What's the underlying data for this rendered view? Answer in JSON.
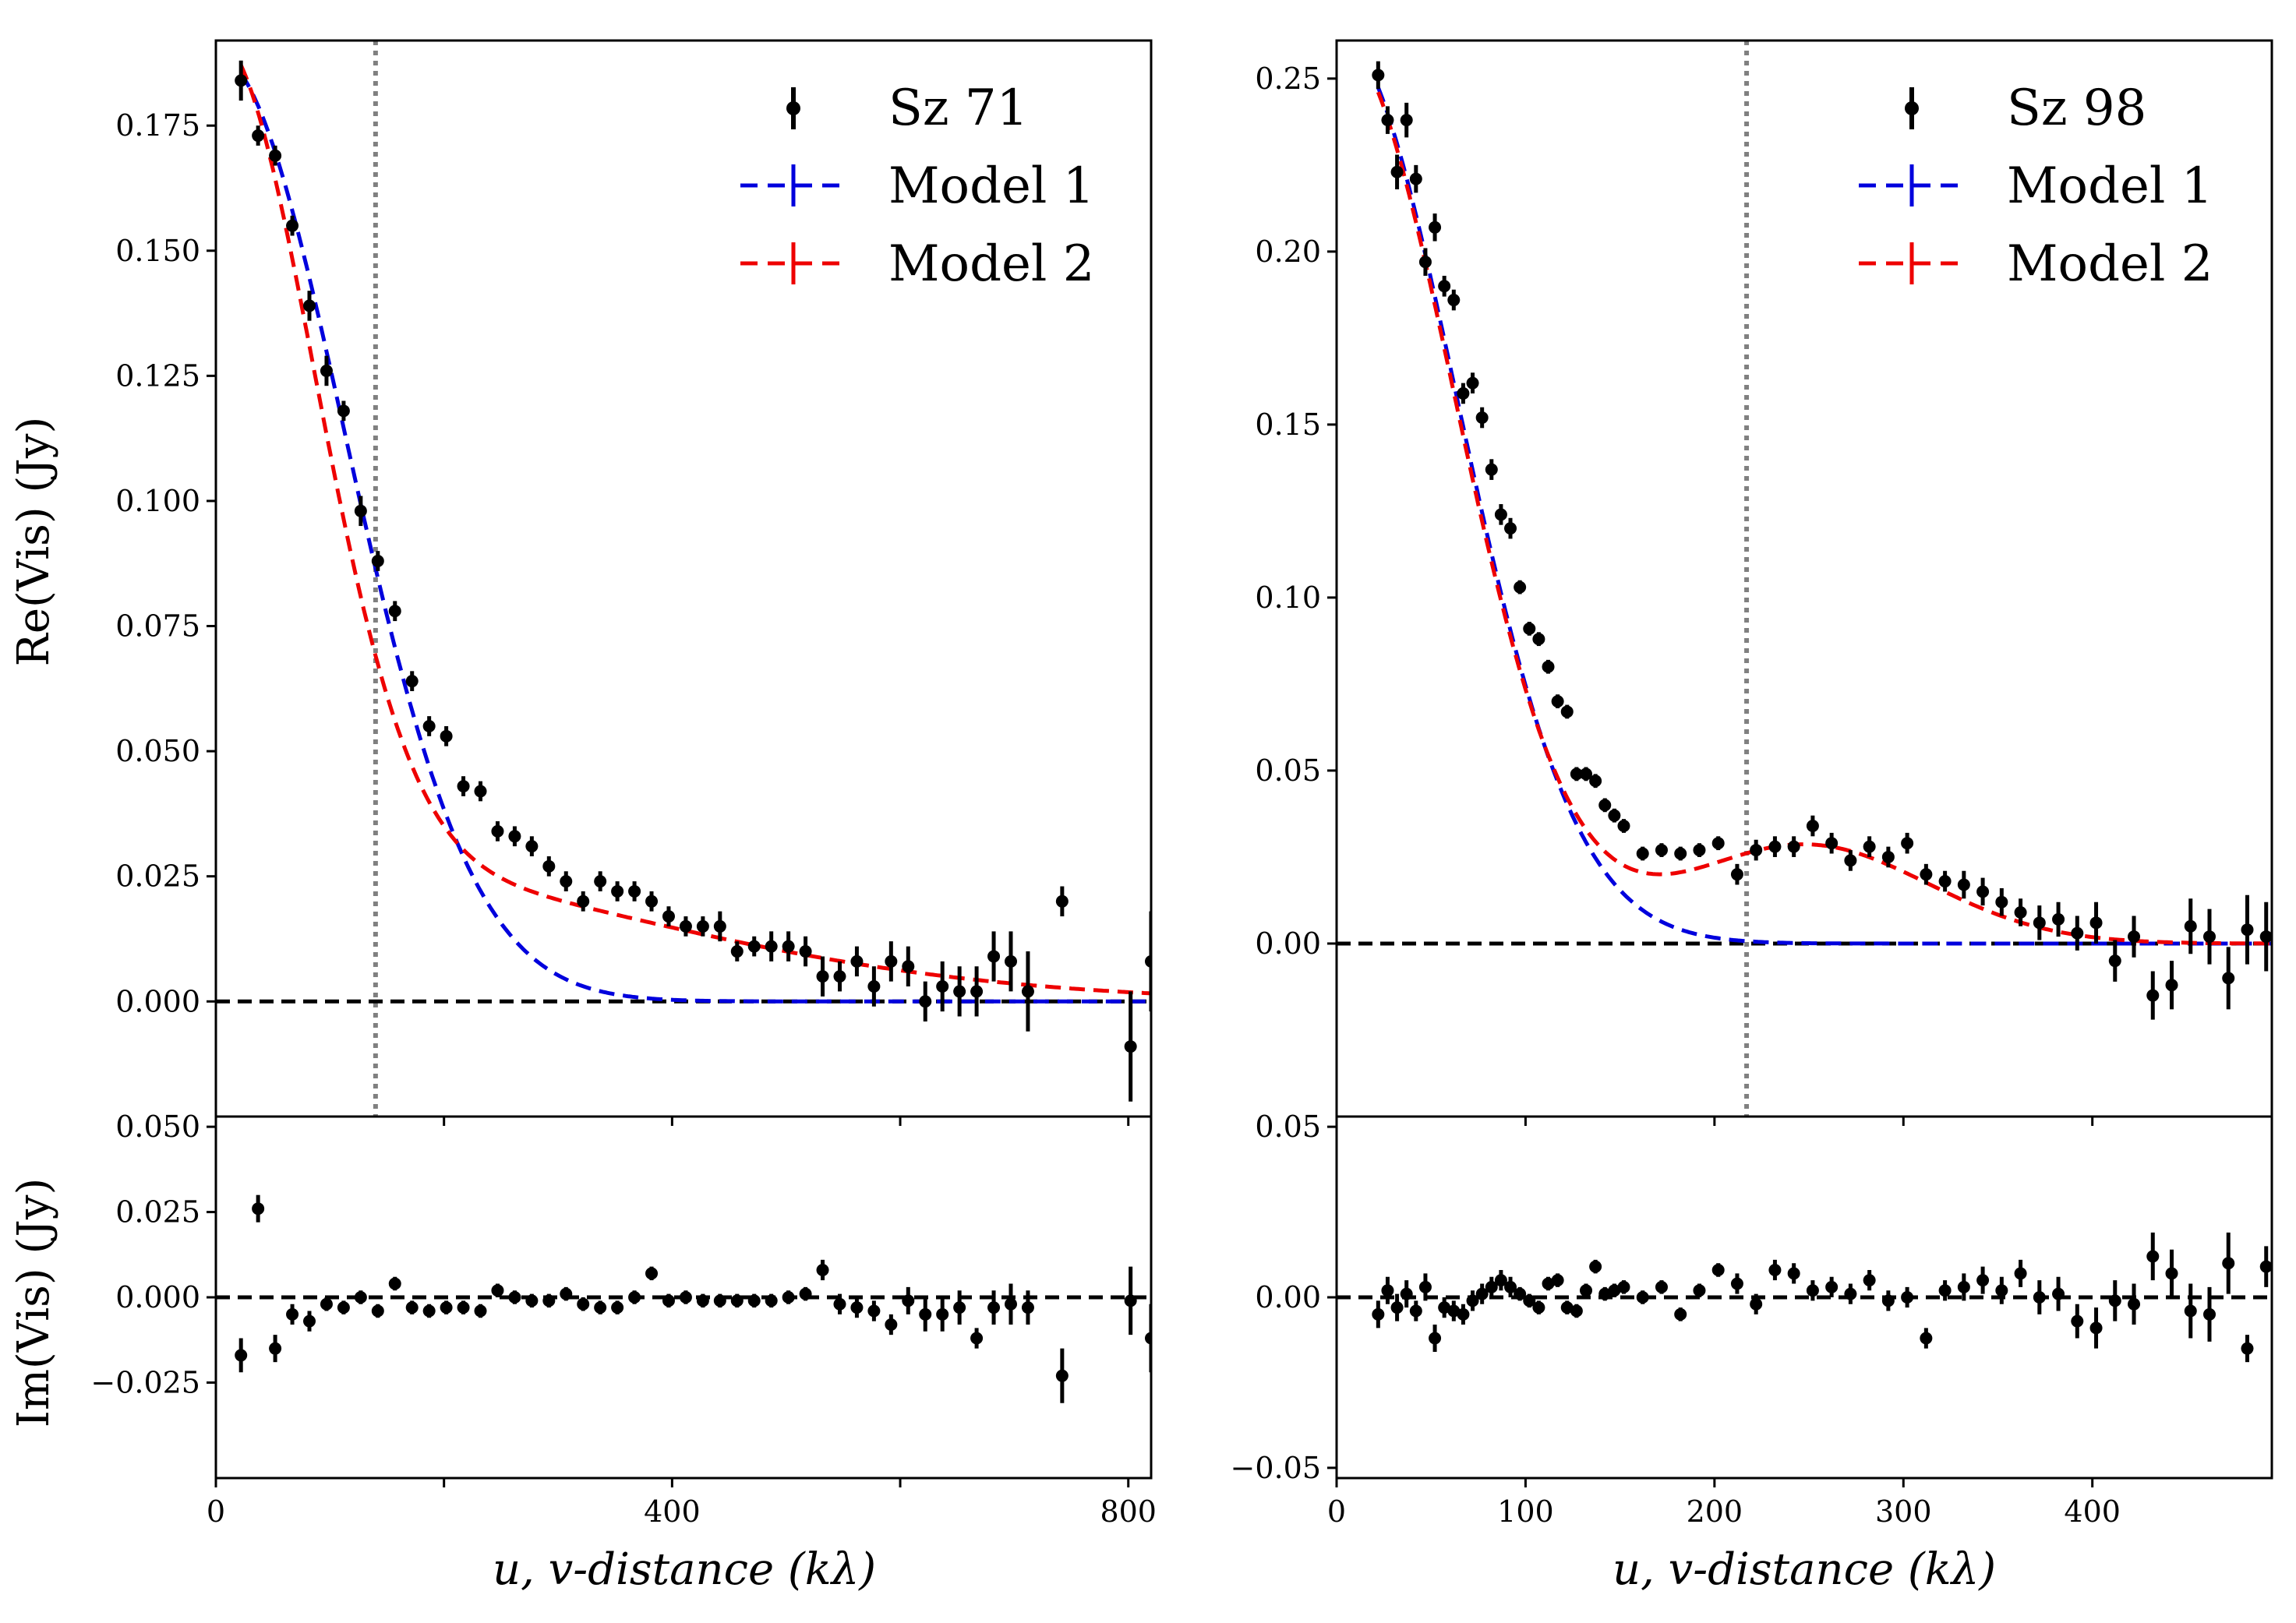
{
  "figure": {
    "left": {
      "legend": [
        "Sz 71",
        "Model 1",
        "Model 2"
      ],
      "ylabel_top": "Re(Vis) (Jy)",
      "ylabel_bottom": "Im(Vis) (Jy)",
      "xlabel": "u, v-distance (kλ)"
    },
    "right": {
      "legend": [
        "Sz 98",
        "Model 1",
        "Model 2"
      ],
      "xlabel": "u, v-distance (kλ)"
    }
  },
  "chart_data": [
    {
      "type": "scatter",
      "panel": "Sz 71 Re(Vis)",
      "title": "",
      "xlabel": "u, v-distance (kλ)",
      "ylabel": "Re(Vis) (Jy)",
      "xlim": [
        0,
        820
      ],
      "ylim": [
        -0.023,
        0.192
      ],
      "xticks": [
        0,
        200,
        400,
        600,
        800
      ],
      "xtick_labels": [
        "0",
        "",
        "400",
        "",
        "800"
      ],
      "yticks": [
        0.0,
        0.025,
        0.05,
        0.075,
        0.1,
        0.125,
        0.15,
        0.175
      ],
      "ytick_labels": [
        "0.000",
        "0.025",
        "0.050",
        "0.075",
        "0.100",
        "0.125",
        "0.150",
        "0.175"
      ],
      "legend_position": "top-right",
      "vline_x": 140,
      "hline_y": 0,
      "series": [
        {
          "name": "Sz 71",
          "kind": "errorbar",
          "color": "#000000",
          "x": [
            22,
            37,
            52,
            67,
            82,
            97,
            112,
            127,
            142,
            157,
            172,
            187,
            202,
            217,
            232,
            247,
            262,
            277,
            292,
            307,
            322,
            337,
            352,
            367,
            382,
            397,
            412,
            427,
            442,
            457,
            472,
            487,
            502,
            517,
            532,
            547,
            562,
            577,
            592,
            607,
            622,
            637,
            652,
            667,
            682,
            697,
            712,
            742,
            802,
            820
          ],
          "y": [
            0.184,
            0.173,
            0.169,
            0.155,
            0.139,
            0.126,
            0.118,
            0.098,
            0.088,
            0.078,
            0.064,
            0.055,
            0.053,
            0.043,
            0.042,
            0.034,
            0.033,
            0.031,
            0.027,
            0.024,
            0.02,
            0.024,
            0.022,
            0.022,
            0.02,
            0.017,
            0.015,
            0.015,
            0.015,
            0.01,
            0.011,
            0.011,
            0.011,
            0.01,
            0.005,
            0.005,
            0.008,
            0.003,
            0.008,
            0.007,
            0.0,
            0.003,
            0.002,
            0.002,
            0.009,
            0.008,
            0.002,
            0.02,
            -0.009,
            0.008
          ],
          "err": [
            0.004,
            0.002,
            0.002,
            0.002,
            0.003,
            0.003,
            0.002,
            0.003,
            0.002,
            0.002,
            0.002,
            0.002,
            0.002,
            0.002,
            0.002,
            0.002,
            0.002,
            0.002,
            0.002,
            0.002,
            0.002,
            0.002,
            0.002,
            0.002,
            0.002,
            0.002,
            0.002,
            0.002,
            0.003,
            0.002,
            0.002,
            0.003,
            0.003,
            0.003,
            0.004,
            0.003,
            0.003,
            0.004,
            0.004,
            0.004,
            0.004,
            0.005,
            0.005,
            0.005,
            0.005,
            0.006,
            0.008,
            0.003,
            0.011,
            0.01
          ]
        },
        {
          "name": "Model 1",
          "kind": "gaussian-curve",
          "color": "#0000dd",
          "amplitude": 0.189,
          "sigma": 112
        },
        {
          "name": "Model 2",
          "kind": "gaussian-curve",
          "color": "#ee0000",
          "components": [
            {
              "amplitude": 0.163,
              "sigma": 85
            },
            {
              "amplitude": 0.0295,
              "sigma": 340
            }
          ]
        }
      ]
    },
    {
      "type": "scatter",
      "panel": "Sz 71 Im(Vis)",
      "title": "",
      "xlabel": "u, v-distance (kλ)",
      "ylabel": "Im(Vis) (Jy)",
      "xlim": [
        0,
        820
      ],
      "ylim": [
        -0.053,
        0.053
      ],
      "xticks": [
        0,
        200,
        400,
        600,
        800
      ],
      "xtick_labels": [
        "0",
        "",
        "400",
        "",
        "800"
      ],
      "yticks": [
        -0.025,
        0.0,
        0.025,
        0.05
      ],
      "ytick_labels": [
        "−0.025",
        "0.000",
        "0.025",
        "0.050"
      ],
      "hline_y": 0,
      "series": [
        {
          "name": "Sz 71",
          "kind": "errorbar",
          "color": "#000000",
          "x": [
            22,
            37,
            52,
            67,
            82,
            97,
            112,
            127,
            142,
            157,
            172,
            187,
            202,
            217,
            232,
            247,
            262,
            277,
            292,
            307,
            322,
            337,
            352,
            367,
            382,
            397,
            412,
            427,
            442,
            457,
            472,
            487,
            502,
            517,
            532,
            547,
            562,
            577,
            592,
            607,
            622,
            637,
            652,
            667,
            682,
            697,
            712,
            742,
            802,
            820
          ],
          "y": [
            -0.017,
            0.026,
            -0.015,
            -0.005,
            -0.007,
            -0.002,
            -0.003,
            0.0,
            -0.004,
            0.004,
            -0.003,
            -0.004,
            -0.003,
            -0.003,
            -0.004,
            0.002,
            0.0,
            -0.001,
            -0.001,
            0.001,
            -0.002,
            -0.003,
            -0.003,
            0.0,
            0.007,
            -0.001,
            0.0,
            -0.001,
            -0.001,
            -0.001,
            -0.001,
            -0.001,
            0.0,
            0.001,
            0.008,
            -0.002,
            -0.003,
            -0.004,
            -0.008,
            -0.001,
            -0.005,
            -0.005,
            -0.003,
            -0.012,
            -0.003,
            -0.002,
            -0.003,
            -0.023,
            -0.001,
            -0.012
          ],
          "err": [
            0.005,
            0.004,
            0.004,
            0.003,
            0.003,
            0.002,
            0.002,
            0.002,
            0.002,
            0.002,
            0.002,
            0.002,
            0.002,
            0.002,
            0.002,
            0.002,
            0.002,
            0.002,
            0.002,
            0.002,
            0.002,
            0.002,
            0.002,
            0.002,
            0.002,
            0.002,
            0.002,
            0.002,
            0.002,
            0.002,
            0.002,
            0.002,
            0.002,
            0.002,
            0.003,
            0.003,
            0.003,
            0.003,
            0.003,
            0.004,
            0.005,
            0.005,
            0.005,
            0.003,
            0.005,
            0.006,
            0.005,
            0.008,
            0.01,
            0.01
          ]
        }
      ]
    },
    {
      "type": "scatter",
      "panel": "Sz 98 Re(Vis)",
      "title": "",
      "xlabel": "u, v-distance (kλ)",
      "ylabel": "",
      "xlim": [
        0,
        495
      ],
      "ylim": [
        -0.05,
        0.261
      ],
      "xticks": [
        0,
        100,
        200,
        300,
        400
      ],
      "xtick_labels": [
        "0",
        "100",
        "200",
        "300",
        "400"
      ],
      "yticks": [
        0.0,
        0.05,
        0.1,
        0.15,
        0.2,
        0.25
      ],
      "ytick_labels": [
        "0.00",
        "0.05",
        "0.10",
        "0.15",
        "0.20",
        "0.25"
      ],
      "legend_position": "top-right",
      "vline_x": 217,
      "hline_y": 0,
      "series": [
        {
          "name": "Sz 98",
          "kind": "errorbar",
          "color": "#000000",
          "x": [
            22,
            27,
            32,
            37,
            42,
            47,
            52,
            57,
            62,
            67,
            72,
            77,
            82,
            87,
            92,
            97,
            102,
            107,
            112,
            117,
            122,
            127,
            132,
            137,
            142,
            147,
            152,
            162,
            172,
            182,
            192,
            202,
            212,
            222,
            232,
            242,
            252,
            262,
            272,
            282,
            292,
            302,
            312,
            322,
            332,
            342,
            352,
            362,
            372,
            382,
            392,
            402,
            412,
            422,
            432,
            442,
            452,
            462,
            472,
            482,
            492
          ],
          "y": [
            0.251,
            0.238,
            0.223,
            0.238,
            0.221,
            0.197,
            0.207,
            0.19,
            0.186,
            0.159,
            0.162,
            0.152,
            0.137,
            0.124,
            0.12,
            0.103,
            0.091,
            0.088,
            0.08,
            0.07,
            0.067,
            0.049,
            0.049,
            0.047,
            0.04,
            0.037,
            0.034,
            0.026,
            0.027,
            0.026,
            0.027,
            0.029,
            0.02,
            0.027,
            0.028,
            0.028,
            0.034,
            0.029,
            0.024,
            0.028,
            0.025,
            0.029,
            0.02,
            0.018,
            0.017,
            0.015,
            0.012,
            0.009,
            0.006,
            0.007,
            0.003,
            0.006,
            -0.005,
            0.002,
            -0.015,
            -0.012,
            0.005,
            0.002,
            -0.01,
            0.004,
            0.002
          ],
          "err": [
            0.004,
            0.004,
            0.005,
            0.005,
            0.004,
            0.004,
            0.004,
            0.003,
            0.003,
            0.003,
            0.003,
            0.003,
            0.003,
            0.003,
            0.003,
            0.002,
            0.002,
            0.002,
            0.002,
            0.002,
            0.002,
            0.002,
            0.002,
            0.002,
            0.002,
            0.002,
            0.002,
            0.002,
            0.002,
            0.002,
            0.002,
            0.002,
            0.003,
            0.003,
            0.003,
            0.003,
            0.003,
            0.003,
            0.003,
            0.003,
            0.003,
            0.003,
            0.003,
            0.003,
            0.004,
            0.004,
            0.004,
            0.004,
            0.005,
            0.005,
            0.005,
            0.006,
            0.006,
            0.006,
            0.007,
            0.007,
            0.008,
            0.008,
            0.009,
            0.01,
            0.01
          ]
        },
        {
          "name": "Model 1",
          "kind": "gaussian-curve",
          "color": "#0000dd",
          "amplitude": 0.263,
          "sigma": 63
        },
        {
          "name": "Model 2",
          "kind": "gaussian-curve",
          "color": "#ee0000",
          "components": [
            {
              "amplitude": 0.262,
              "sigma": 62
            },
            {
              "amplitude": 0.0286,
              "center": 248,
              "sigma": 65
            }
          ]
        }
      ]
    },
    {
      "type": "scatter",
      "panel": "Sz 98 Im(Vis)",
      "title": "",
      "xlabel": "u, v-distance (kλ)",
      "ylabel": "",
      "xlim": [
        0,
        495
      ],
      "ylim": [
        -0.053,
        0.053
      ],
      "xticks": [
        0,
        100,
        200,
        300,
        400
      ],
      "xtick_labels": [
        "0",
        "100",
        "200",
        "300",
        "400"
      ],
      "yticks": [
        -0.05,
        0.0,
        0.05
      ],
      "ytick_labels": [
        "−0.05",
        "0.00",
        "0.05"
      ],
      "hline_y": 0,
      "series": [
        {
          "name": "Sz 98",
          "kind": "errorbar",
          "color": "#000000",
          "x": [
            22,
            27,
            32,
            37,
            42,
            47,
            52,
            57,
            62,
            67,
            72,
            77,
            82,
            87,
            92,
            97,
            102,
            107,
            112,
            117,
            122,
            127,
            132,
            137,
            142,
            147,
            152,
            162,
            172,
            182,
            192,
            202,
            212,
            222,
            232,
            242,
            252,
            262,
            272,
            282,
            292,
            302,
            312,
            322,
            332,
            342,
            352,
            362,
            372,
            382,
            392,
            402,
            412,
            422,
            432,
            442,
            452,
            462,
            472,
            482,
            492
          ],
          "y": [
            -0.005,
            0.002,
            -0.003,
            0.001,
            -0.004,
            0.003,
            -0.012,
            -0.003,
            -0.004,
            -0.005,
            -0.001,
            0.001,
            0.003,
            0.005,
            0.003,
            0.001,
            -0.001,
            -0.003,
            0.004,
            0.005,
            -0.003,
            -0.004,
            0.002,
            0.009,
            0.001,
            0.002,
            0.003,
            0.0,
            0.003,
            -0.005,
            0.002,
            0.008,
            0.004,
            -0.002,
            0.008,
            0.007,
            0.002,
            0.003,
            0.001,
            0.005,
            -0.001,
            0.0,
            -0.012,
            0.002,
            0.003,
            0.005,
            0.002,
            0.007,
            0.0,
            0.001,
            -0.007,
            -0.009,
            -0.001,
            -0.002,
            0.012,
            0.007,
            -0.004,
            -0.005,
            0.01,
            -0.015,
            0.009
          ],
          "err": [
            0.004,
            0.004,
            0.004,
            0.004,
            0.003,
            0.004,
            0.004,
            0.003,
            0.003,
            0.003,
            0.003,
            0.003,
            0.003,
            0.003,
            0.003,
            0.002,
            0.002,
            0.002,
            0.002,
            0.002,
            0.002,
            0.002,
            0.002,
            0.002,
            0.002,
            0.002,
            0.002,
            0.002,
            0.002,
            0.002,
            0.002,
            0.002,
            0.003,
            0.003,
            0.003,
            0.003,
            0.003,
            0.003,
            0.003,
            0.003,
            0.003,
            0.003,
            0.003,
            0.003,
            0.004,
            0.004,
            0.004,
            0.004,
            0.005,
            0.005,
            0.005,
            0.006,
            0.006,
            0.006,
            0.007,
            0.007,
            0.008,
            0.008,
            0.009,
            0.004,
            0.006
          ]
        }
      ]
    }
  ]
}
